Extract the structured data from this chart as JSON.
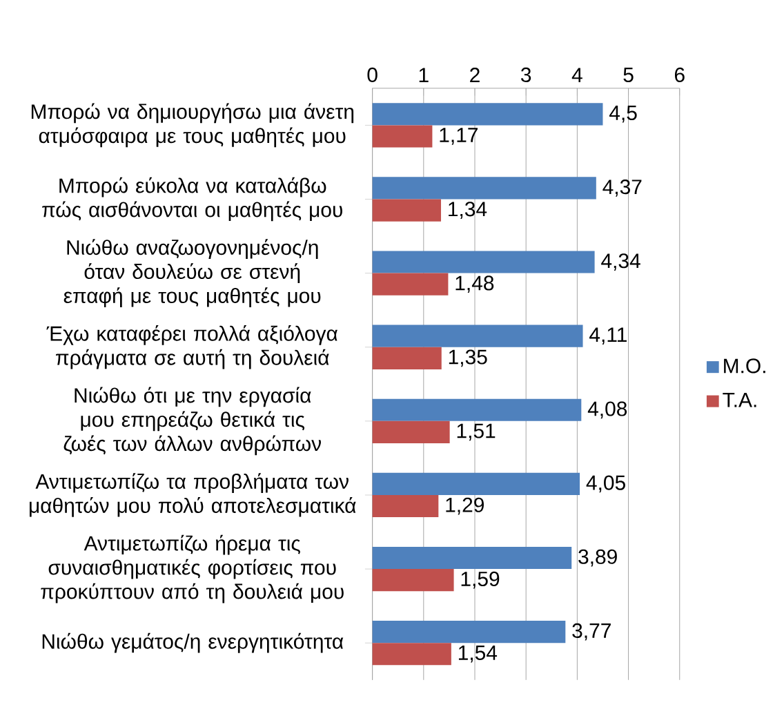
{
  "chart_data": {
    "type": "bar",
    "orientation": "horizontal",
    "categories": [
      "Μπορώ να δημιουργήσω μια άνετη ατμόσφαιρα με τους μαθητές μου",
      "Μπορώ εύκολα να καταλάβω πώς αισθάνονται οι μαθητές μου",
      "Νιώθω αναζωογονημένος/η όταν δουλεύω σε στενή επαφή με τους μαθητές μου",
      "Έχω καταφέρει πολλά αξιόλογα πράγματα σε αυτή τη δουλειά",
      "Νιώθω ότι με την εργασία μου επηρεάζω θετικά τις ζωές των άλλων ανθρώπων",
      "Αντιμετωπίζω τα προβλήματα των μαθητών μου πολύ αποτελεσματικά",
      "Αντιμετωπίζω ήρεμα τις συναισθηματικές φορτίσεις που προκύπτουν από τη δουλειά μου",
      "Νιώθω γεμάτος/η ενεργητικότητα"
    ],
    "series": [
      {
        "name": "Μ.Ο.",
        "color": "#4f81bd",
        "values": [
          4.5,
          4.37,
          4.34,
          4.11,
          4.08,
          4.05,
          3.89,
          3.77
        ],
        "value_labels": [
          "4,5",
          "4,37",
          "4,34",
          "4,11",
          "4,08",
          "4,05",
          "3,89",
          "3,77"
        ]
      },
      {
        "name": "Τ.Α.",
        "color": "#c0504d",
        "values": [
          1.17,
          1.34,
          1.48,
          1.35,
          1.51,
          1.29,
          1.59,
          1.54
        ],
        "value_labels": [
          "1,17",
          "1,34",
          "1,48",
          "1,35",
          "1,51",
          "1,29",
          "1,59",
          "1,54"
        ]
      }
    ],
    "xlim": [
      0,
      6
    ],
    "xticks": [
      0,
      1,
      2,
      3,
      4,
      5,
      6
    ],
    "grid": "x",
    "legend": "right"
  }
}
